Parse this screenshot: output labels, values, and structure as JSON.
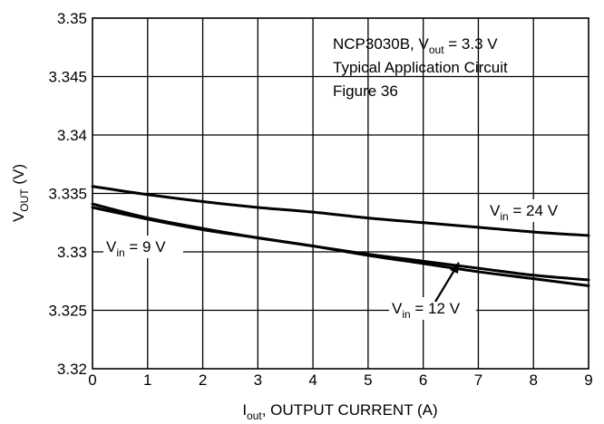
{
  "chart_data": {
    "type": "line",
    "xlabel": {
      "main": "I",
      "sub": "out",
      "rest": ", OUTPUT CURRENT (A)"
    },
    "ylabel": {
      "main": "V",
      "sub": "OUT",
      "rest": " (V)"
    },
    "xlim": [
      0,
      9
    ],
    "ylim": [
      3.32,
      3.35
    ],
    "x_ticks": [
      0,
      1,
      2,
      3,
      4,
      5,
      6,
      7,
      8,
      9
    ],
    "x_tick_labels": [
      "0",
      "1",
      "2",
      "3",
      "4",
      "5",
      "6",
      "7",
      "8",
      "9"
    ],
    "y_ticks": [
      3.32,
      3.325,
      3.33,
      3.335,
      3.34,
      3.345,
      3.35
    ],
    "y_tick_labels": [
      "3.32",
      "3.325",
      "3.33",
      "3.335",
      "3.34",
      "3.345",
      "3.35"
    ],
    "grid": true,
    "annotation": {
      "line1": {
        "pre": "NCP3030B, V",
        "sub": "out",
        "post": " = 3.3 V"
      },
      "line2": "Typical Application Circuit",
      "line3": "Figure 36"
    },
    "series": [
      {
        "label": {
          "pre": "V",
          "sub": "in",
          "post": " = 24 V"
        },
        "x": [
          0,
          1,
          2,
          3,
          4,
          5,
          6,
          7,
          8,
          9
        ],
        "y": [
          3.3356,
          3.3349,
          3.3343,
          3.3338,
          3.3334,
          3.3329,
          3.3325,
          3.3321,
          3.3317,
          3.3314
        ]
      },
      {
        "label": {
          "pre": "V",
          "sub": "in",
          "post": " = 9 V"
        },
        "x": [
          0,
          1,
          2,
          3,
          4,
          5,
          6,
          7,
          8,
          9
        ],
        "y": [
          3.3341,
          3.3329,
          3.332,
          3.3312,
          3.3305,
          3.3298,
          3.3292,
          3.3286,
          3.328,
          3.3276
        ]
      },
      {
        "label": {
          "pre": "V",
          "sub": "in",
          "post": " = 12 V"
        },
        "x": [
          0,
          1,
          2,
          3,
          4,
          5,
          6,
          7,
          8,
          9
        ],
        "y": [
          3.3338,
          3.3328,
          3.3319,
          3.3312,
          3.3305,
          3.3297,
          3.329,
          3.3283,
          3.3277,
          3.3271
        ]
      }
    ]
  }
}
